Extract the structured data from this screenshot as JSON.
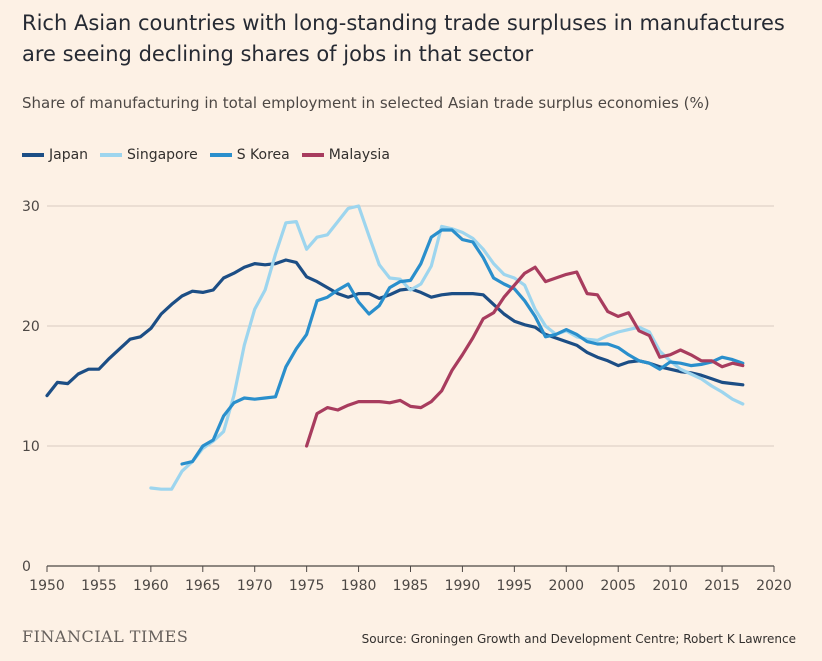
{
  "header": {
    "title": "Rich Asian countries with long-standing trade surpluses in manufactures are seeing declining shares of jobs in that sector",
    "subtitle": "Share of manufacturing in total employment in selected Asian trade surplus economies (%)"
  },
  "footer": {
    "brand": "FINANCIAL TIMES",
    "source": "Source: Groningen Growth and Development Centre; Robert K Lawrence"
  },
  "chart_data": {
    "type": "line",
    "title": "Rich Asian countries with long-standing trade surpluses in manufactures are seeing declining shares of jobs in that sector",
    "subtitle": "Share of manufacturing in total employment in selected Asian trade surplus economies (%)",
    "xlabel": "",
    "ylabel": "",
    "xlim": [
      1950,
      2020
    ],
    "ylim": [
      0,
      30
    ],
    "x_ticks": [
      1950,
      1955,
      1960,
      1965,
      1970,
      1975,
      1980,
      1985,
      1990,
      1995,
      2000,
      2005,
      2010,
      2015,
      2020
    ],
    "y_ticks": [
      0,
      10,
      20,
      30
    ],
    "grid": "horizontal",
    "legend_position": "top-left",
    "series": [
      {
        "name": "Japan",
        "color": "#1c4e85",
        "x": [
          1950,
          1951,
          1952,
          1953,
          1954,
          1955,
          1956,
          1957,
          1958,
          1959,
          1960,
          1961,
          1962,
          1963,
          1964,
          1965,
          1966,
          1967,
          1968,
          1969,
          1970,
          1971,
          1972,
          1973,
          1974,
          1975,
          1976,
          1977,
          1978,
          1979,
          1980,
          1981,
          1982,
          1983,
          1984,
          1985,
          1986,
          1987,
          1988,
          1989,
          1990,
          1991,
          1992,
          1993,
          1994,
          1995,
          1996,
          1997,
          1998,
          1999,
          2000,
          2001,
          2002,
          2003,
          2004,
          2005,
          2006,
          2007,
          2008,
          2009,
          2010,
          2011,
          2012,
          2013,
          2014,
          2015,
          2016,
          2017
        ],
        "values": [
          14.2,
          15.3,
          15.2,
          16.0,
          16.4,
          16.4,
          17.3,
          18.1,
          18.9,
          19.1,
          19.8,
          21.0,
          21.8,
          22.5,
          22.9,
          22.8,
          23.0,
          24.0,
          24.4,
          24.9,
          25.2,
          25.1,
          25.2,
          25.5,
          25.3,
          24.1,
          23.7,
          23.2,
          22.7,
          22.4,
          22.7,
          22.7,
          22.3,
          22.6,
          23.0,
          23.1,
          22.8,
          22.4,
          22.6,
          22.7,
          22.7,
          22.7,
          22.6,
          21.8,
          21.0,
          20.4,
          20.1,
          19.9,
          19.3,
          19.0,
          18.7,
          18.4,
          17.8,
          17.4,
          17.1,
          16.7,
          17.0,
          17.1,
          16.9,
          16.6,
          16.4,
          16.2,
          16.1,
          15.9,
          15.6,
          15.3,
          15.2,
          15.1
        ]
      },
      {
        "name": "Singapore",
        "color": "#9dd5ee",
        "x": [
          1960,
          1961,
          1962,
          1963,
          1964,
          1965,
          1966,
          1967,
          1968,
          1969,
          1970,
          1971,
          1972,
          1973,
          1974,
          1975,
          1976,
          1977,
          1978,
          1979,
          1980,
          1981,
          1982,
          1983,
          1984,
          1985,
          1986,
          1987,
          1988,
          1989,
          1990,
          1991,
          1992,
          1993,
          1994,
          1995,
          1996,
          1997,
          1998,
          1999,
          2000,
          2001,
          2002,
          2003,
          2004,
          2005,
          2006,
          2007,
          2008,
          2009,
          2010,
          2011,
          2012,
          2013,
          2014,
          2015,
          2016,
          2017
        ],
        "values": [
          6.5,
          6.4,
          6.4,
          7.9,
          8.7,
          9.8,
          10.4,
          11.2,
          14.2,
          18.4,
          21.4,
          23.0,
          26.0,
          28.6,
          28.7,
          26.4,
          27.4,
          27.6,
          28.7,
          29.8,
          30.0,
          27.5,
          25.1,
          24.0,
          23.9,
          23.0,
          23.5,
          25.0,
          28.3,
          28.1,
          27.8,
          27.3,
          26.4,
          25.2,
          24.3,
          24.0,
          23.4,
          21.4,
          20.0,
          19.3,
          19.6,
          19.1,
          18.9,
          18.8,
          19.2,
          19.5,
          19.7,
          19.9,
          19.5,
          17.9,
          17.1,
          16.4,
          16.0,
          15.6,
          15.0,
          14.5,
          13.9,
          13.5
        ]
      },
      {
        "name": "S Korea",
        "color": "#2a8fcc",
        "x": [
          1963,
          1964,
          1965,
          1966,
          1967,
          1968,
          1969,
          1970,
          1971,
          1972,
          1973,
          1974,
          1975,
          1976,
          1977,
          1978,
          1979,
          1980,
          1981,
          1982,
          1983,
          1984,
          1985,
          1986,
          1987,
          1988,
          1989,
          1990,
          1991,
          1992,
          1993,
          1994,
          1995,
          1996,
          1997,
          1998,
          1999,
          2000,
          2001,
          2002,
          2003,
          2004,
          2005,
          2006,
          2007,
          2008,
          2009,
          2010,
          2011,
          2012,
          2013,
          2014,
          2015,
          2016,
          2017
        ],
        "values": [
          8.5,
          8.7,
          10.0,
          10.5,
          12.5,
          13.6,
          14.0,
          13.9,
          14.0,
          14.1,
          16.6,
          18.1,
          19.3,
          22.1,
          22.4,
          23.0,
          23.5,
          22.0,
          21.0,
          21.7,
          23.2,
          23.7,
          23.8,
          25.2,
          27.4,
          28.0,
          28.0,
          27.2,
          27.0,
          25.7,
          24.0,
          23.5,
          23.1,
          22.1,
          20.8,
          19.1,
          19.3,
          19.7,
          19.3,
          18.7,
          18.5,
          18.5,
          18.2,
          17.6,
          17.1,
          16.9,
          16.4,
          17.0,
          16.9,
          16.7,
          16.8,
          17.0,
          17.4,
          17.2,
          16.9
        ]
      },
      {
        "name": "Malaysia",
        "color": "#a83c5e",
        "x": [
          1975,
          1976,
          1977,
          1978,
          1979,
          1980,
          1981,
          1982,
          1983,
          1984,
          1985,
          1986,
          1987,
          1988,
          1989,
          1990,
          1991,
          1992,
          1993,
          1994,
          1995,
          1996,
          1997,
          1998,
          1999,
          2000,
          2001,
          2002,
          2003,
          2004,
          2005,
          2006,
          2007,
          2008,
          2009,
          2010,
          2011,
          2012,
          2013,
          2014,
          2015,
          2016,
          2017
        ],
        "values": [
          10.0,
          12.7,
          13.2,
          13.0,
          13.4,
          13.7,
          13.7,
          13.7,
          13.6,
          13.8,
          13.3,
          13.2,
          13.7,
          14.6,
          16.3,
          17.6,
          19.0,
          20.6,
          21.1,
          22.4,
          23.4,
          24.4,
          24.9,
          23.7,
          24.0,
          24.3,
          24.5,
          22.7,
          22.6,
          21.2,
          20.8,
          21.1,
          19.6,
          19.2,
          17.4,
          17.6,
          18.0,
          17.6,
          17.1,
          17.1,
          16.6,
          16.9,
          16.7
        ]
      }
    ]
  }
}
